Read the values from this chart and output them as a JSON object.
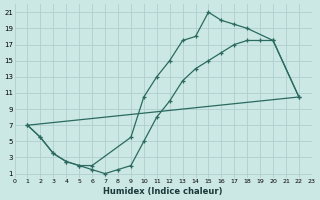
{
  "xlabel": "Humidex (Indice chaleur)",
  "xlim": [
    0,
    23
  ],
  "ylim": [
    0.5,
    22
  ],
  "xticks": [
    0,
    1,
    2,
    3,
    4,
    5,
    6,
    7,
    8,
    9,
    10,
    11,
    12,
    13,
    14,
    15,
    16,
    17,
    18,
    19,
    20,
    21,
    22,
    23
  ],
  "yticks": [
    1,
    3,
    5,
    7,
    9,
    11,
    13,
    15,
    17,
    19,
    21
  ],
  "bg_color": "#cce8e4",
  "grid_color": "#b0cece",
  "line_color": "#2a6a60",
  "line1_x": [
    1,
    2,
    3,
    4,
    5,
    6,
    9,
    10,
    11,
    12,
    13,
    14,
    15,
    16,
    17,
    18,
    20,
    22
  ],
  "line1_y": [
    7,
    5.5,
    3.5,
    2.5,
    2,
    2,
    5.5,
    10.5,
    13,
    15,
    17.5,
    18,
    21,
    20,
    19.5,
    19,
    17.5,
    10.5
  ],
  "line2_x": [
    1,
    2,
    3,
    4,
    5,
    6,
    7,
    8,
    9,
    10,
    11,
    12,
    13,
    14,
    15,
    16,
    17,
    18,
    19,
    20,
    22
  ],
  "line2_y": [
    7,
    5.5,
    3.5,
    2.5,
    2,
    1.5,
    1,
    1.5,
    2,
    5,
    8,
    10,
    12.5,
    14,
    15,
    16,
    17,
    17.5,
    17.5,
    17.5,
    10.5
  ],
  "line3_x": [
    1,
    22
  ],
  "line3_y": [
    7,
    10.5
  ]
}
